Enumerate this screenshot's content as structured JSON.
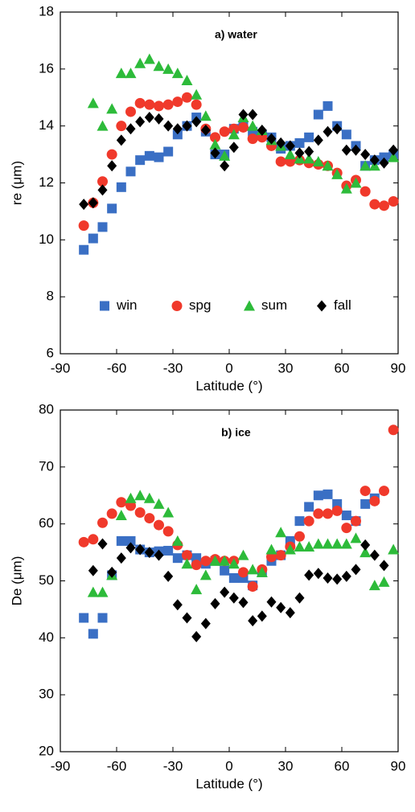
{
  "chart_data": [
    {
      "type": "scatter",
      "title": "a) water",
      "xlabel": "Latitude (°)",
      "ylabel": "re (μm)",
      "xlim": [
        -90,
        90
      ],
      "xticks": [
        -90,
        -60,
        -30,
        0,
        30,
        60,
        90
      ],
      "ylim": [
        6,
        18
      ],
      "yticks": [
        6,
        8,
        10,
        12,
        14,
        16,
        18
      ],
      "legend": "lower center",
      "x": [
        -77.5,
        -72.5,
        -67.5,
        -62.5,
        -57.5,
        -52.5,
        -47.5,
        -42.5,
        -37.5,
        -32.5,
        -27.5,
        -22.5,
        -17.5,
        -12.5,
        -7.5,
        -2.5,
        2.5,
        7.5,
        12.5,
        17.5,
        22.5,
        27.5,
        32.5,
        37.5,
        42.5,
        47.5,
        52.5,
        57.5,
        62.5,
        67.5,
        72.5,
        77.5,
        82.5,
        87.5
      ],
      "series": [
        {
          "name": "win",
          "color": "#3a6fc4",
          "marker": "square",
          "values": [
            9.65,
            10.05,
            10.45,
            11.1,
            11.85,
            12.4,
            12.8,
            12.95,
            12.9,
            13.1,
            13.7,
            14.0,
            14.3,
            13.8,
            13.0,
            13.0,
            13.9,
            14.0,
            13.8,
            13.7,
            13.6,
            13.2,
            13.3,
            13.4,
            13.6,
            14.4,
            14.7,
            14.0,
            13.7,
            13.3,
            12.6,
            12.8,
            12.9,
            13.0
          ]
        },
        {
          "name": "spg",
          "color": "#f0392b",
          "marker": "circle",
          "values": [
            10.5,
            11.3,
            12.05,
            13.0,
            14.0,
            14.5,
            14.8,
            14.75,
            14.7,
            14.75,
            14.85,
            15.0,
            14.75,
            13.9,
            13.6,
            13.8,
            13.9,
            13.95,
            13.55,
            13.6,
            13.3,
            12.75,
            12.75,
            12.8,
            12.7,
            12.65,
            12.6,
            12.35,
            11.9,
            12.1,
            11.7,
            11.25,
            11.2,
            11.35
          ]
        },
        {
          "name": "sum",
          "color": "#2dbb3a",
          "marker": "triangle",
          "values": [
            null,
            14.8,
            14.0,
            14.6,
            15.85,
            15.85,
            16.2,
            16.35,
            16.1,
            16.0,
            15.85,
            15.6,
            15.1,
            14.35,
            13.35,
            12.95,
            13.7,
            14.3,
            14.0,
            13.85,
            13.5,
            13.3,
            13.0,
            12.85,
            12.85,
            12.75,
            12.6,
            12.3,
            11.8,
            12.0,
            12.6,
            12.6,
            null,
            12.9
          ]
        },
        {
          "name": "fall",
          "color": "#000000",
          "marker": "diamond",
          "values": [
            11.25,
            11.3,
            11.75,
            12.6,
            13.5,
            13.9,
            14.15,
            14.3,
            14.25,
            14.0,
            13.9,
            14.0,
            14.15,
            13.85,
            13.05,
            12.6,
            13.25,
            14.4,
            14.4,
            13.85,
            13.55,
            13.4,
            13.3,
            13.05,
            13.1,
            13.5,
            13.8,
            13.9,
            13.15,
            13.15,
            13.0,
            12.8,
            12.7,
            13.15
          ]
        }
      ]
    },
    {
      "type": "scatter",
      "title": "b) ice",
      "xlabel": "Latitude (°)",
      "ylabel": "De (μm)",
      "xlim": [
        -90,
        90
      ],
      "xticks": [
        -90,
        -60,
        -30,
        0,
        30,
        60,
        90
      ],
      "ylim": [
        20,
        80
      ],
      "yticks": [
        20,
        30,
        40,
        50,
        60,
        70,
        80
      ],
      "x": [
        -77.5,
        -72.5,
        -67.5,
        -62.5,
        -57.5,
        -52.5,
        -47.5,
        -42.5,
        -37.5,
        -32.5,
        -27.5,
        -22.5,
        -17.5,
        -12.5,
        -7.5,
        -2.5,
        2.5,
        7.5,
        12.5,
        17.5,
        22.5,
        27.5,
        32.5,
        37.5,
        42.5,
        47.5,
        52.5,
        57.5,
        62.5,
        67.5,
        72.5,
        77.5,
        82.5,
        87.5
      ],
      "series": [
        {
          "color": "#3a6fc4",
          "marker": "square",
          "values": [
            43.5,
            40.7,
            43.5,
            51,
            57,
            57,
            55.5,
            55,
            55.2,
            55.3,
            54,
            54.5,
            54,
            53,
            53.5,
            51.8,
            50.5,
            50.5,
            49.2,
            51.5,
            53.5,
            54.5,
            57,
            60.5,
            63,
            65,
            65.2,
            63.5,
            61.5,
            60.5,
            63.5,
            64.5,
            null,
            null
          ]
        },
        {
          "color": "#f0392b",
          "marker": "circle",
          "values": [
            56.8,
            57.3,
            60.2,
            61.8,
            63.8,
            63.2,
            62,
            61,
            59.8,
            58.7,
            56.3,
            54.5,
            52.8,
            53.5,
            53.8,
            53.5,
            53.5,
            51.5,
            49,
            52,
            54.2,
            54.5,
            56,
            57.8,
            60.5,
            61.8,
            61.8,
            62.3,
            59.3,
            60.5,
            65.8,
            64,
            65.8,
            76.5
          ]
        },
        {
          "color": "#2dbb3a",
          "marker": "triangle",
          "values": [
            null,
            48,
            48,
            51,
            61.5,
            64.5,
            65,
            64.5,
            63.5,
            62,
            57,
            53,
            48.5,
            51,
            53.5,
            53.5,
            53,
            54.5,
            52,
            51.5,
            55.5,
            58.5,
            55.5,
            56,
            56,
            56.5,
            56.5,
            56.5,
            56.5,
            57.5,
            55,
            49.2,
            49.8,
            55.5
          ]
        },
        {
          "color": "#000000",
          "marker": "diamond",
          "values": [
            null,
            51.8,
            56.5,
            51.5,
            54,
            55.8,
            55.5,
            55,
            54.5,
            50.8,
            45.8,
            43.5,
            40.2,
            42.5,
            46,
            48,
            47,
            46.2,
            43,
            43.8,
            46.3,
            45.3,
            44.4,
            47,
            51,
            51.3,
            50.5,
            50.3,
            50.8,
            52,
            56.3,
            54.5,
            52.7,
            null
          ]
        }
      ]
    }
  ]
}
